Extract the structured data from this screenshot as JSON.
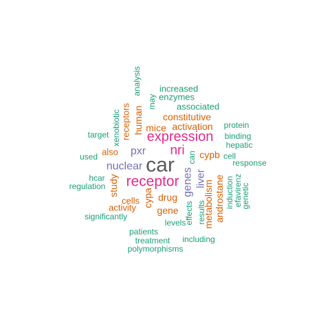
{
  "colors": {
    "green": "#1b9e77",
    "orange": "#d95f02",
    "purple": "#7570b3",
    "magenta": "#e7298a",
    "gray": "#595959"
  },
  "words": [
    {
      "text": "car",
      "color": "gray"
    },
    {
      "text": "expression",
      "color": "magenta"
    },
    {
      "text": "receptor",
      "color": "magenta"
    },
    {
      "text": "nri",
      "color": "magenta"
    },
    {
      "text": "nuclear",
      "color": "purple"
    },
    {
      "text": "pxr",
      "color": "purple"
    },
    {
      "text": "genes",
      "color": "purple"
    },
    {
      "text": "liver",
      "color": "purple"
    },
    {
      "text": "human",
      "color": "orange"
    },
    {
      "text": "constitutive",
      "color": "orange"
    },
    {
      "text": "activation",
      "color": "orange"
    },
    {
      "text": "mice",
      "color": "orange"
    },
    {
      "text": "receptors",
      "color": "orange"
    },
    {
      "text": "also",
      "color": "orange"
    },
    {
      "text": "cypb",
      "color": "orange"
    },
    {
      "text": "study",
      "color": "orange"
    },
    {
      "text": "cypa",
      "color": "orange"
    },
    {
      "text": "drug",
      "color": "orange"
    },
    {
      "text": "gene",
      "color": "orange"
    },
    {
      "text": "cells",
      "color": "orange"
    },
    {
      "text": "activity",
      "color": "orange"
    },
    {
      "text": "metabolism",
      "color": "orange"
    },
    {
      "text": "androstane",
      "color": "orange"
    },
    {
      "text": "increased",
      "color": "green"
    },
    {
      "text": "enzymes",
      "color": "green"
    },
    {
      "text": "analysis",
      "color": "green"
    },
    {
      "text": "may",
      "color": "green"
    },
    {
      "text": "associated",
      "color": "green"
    },
    {
      "text": "xenobiotic",
      "color": "green"
    },
    {
      "text": "target",
      "color": "green"
    },
    {
      "text": "protein",
      "color": "green"
    },
    {
      "text": "binding",
      "color": "green"
    },
    {
      "text": "hepatic",
      "color": "green"
    },
    {
      "text": "used",
      "color": "green"
    },
    {
      "text": "can",
      "color": "green"
    },
    {
      "text": "cell",
      "color": "green"
    },
    {
      "text": "response",
      "color": "green"
    },
    {
      "text": "hcar",
      "color": "green"
    },
    {
      "text": "regulation",
      "color": "green"
    },
    {
      "text": "induction",
      "color": "green"
    },
    {
      "text": "efavirenz",
      "color": "green"
    },
    {
      "text": "genetic",
      "color": "green"
    },
    {
      "text": "significantly",
      "color": "green"
    },
    {
      "text": "levels",
      "color": "green"
    },
    {
      "text": "effects",
      "color": "green"
    },
    {
      "text": "results",
      "color": "green"
    },
    {
      "text": "patients",
      "color": "green"
    },
    {
      "text": "including",
      "color": "green"
    },
    {
      "text": "treatment",
      "color": "green"
    },
    {
      "text": "polymorphisms",
      "color": "green"
    }
  ]
}
